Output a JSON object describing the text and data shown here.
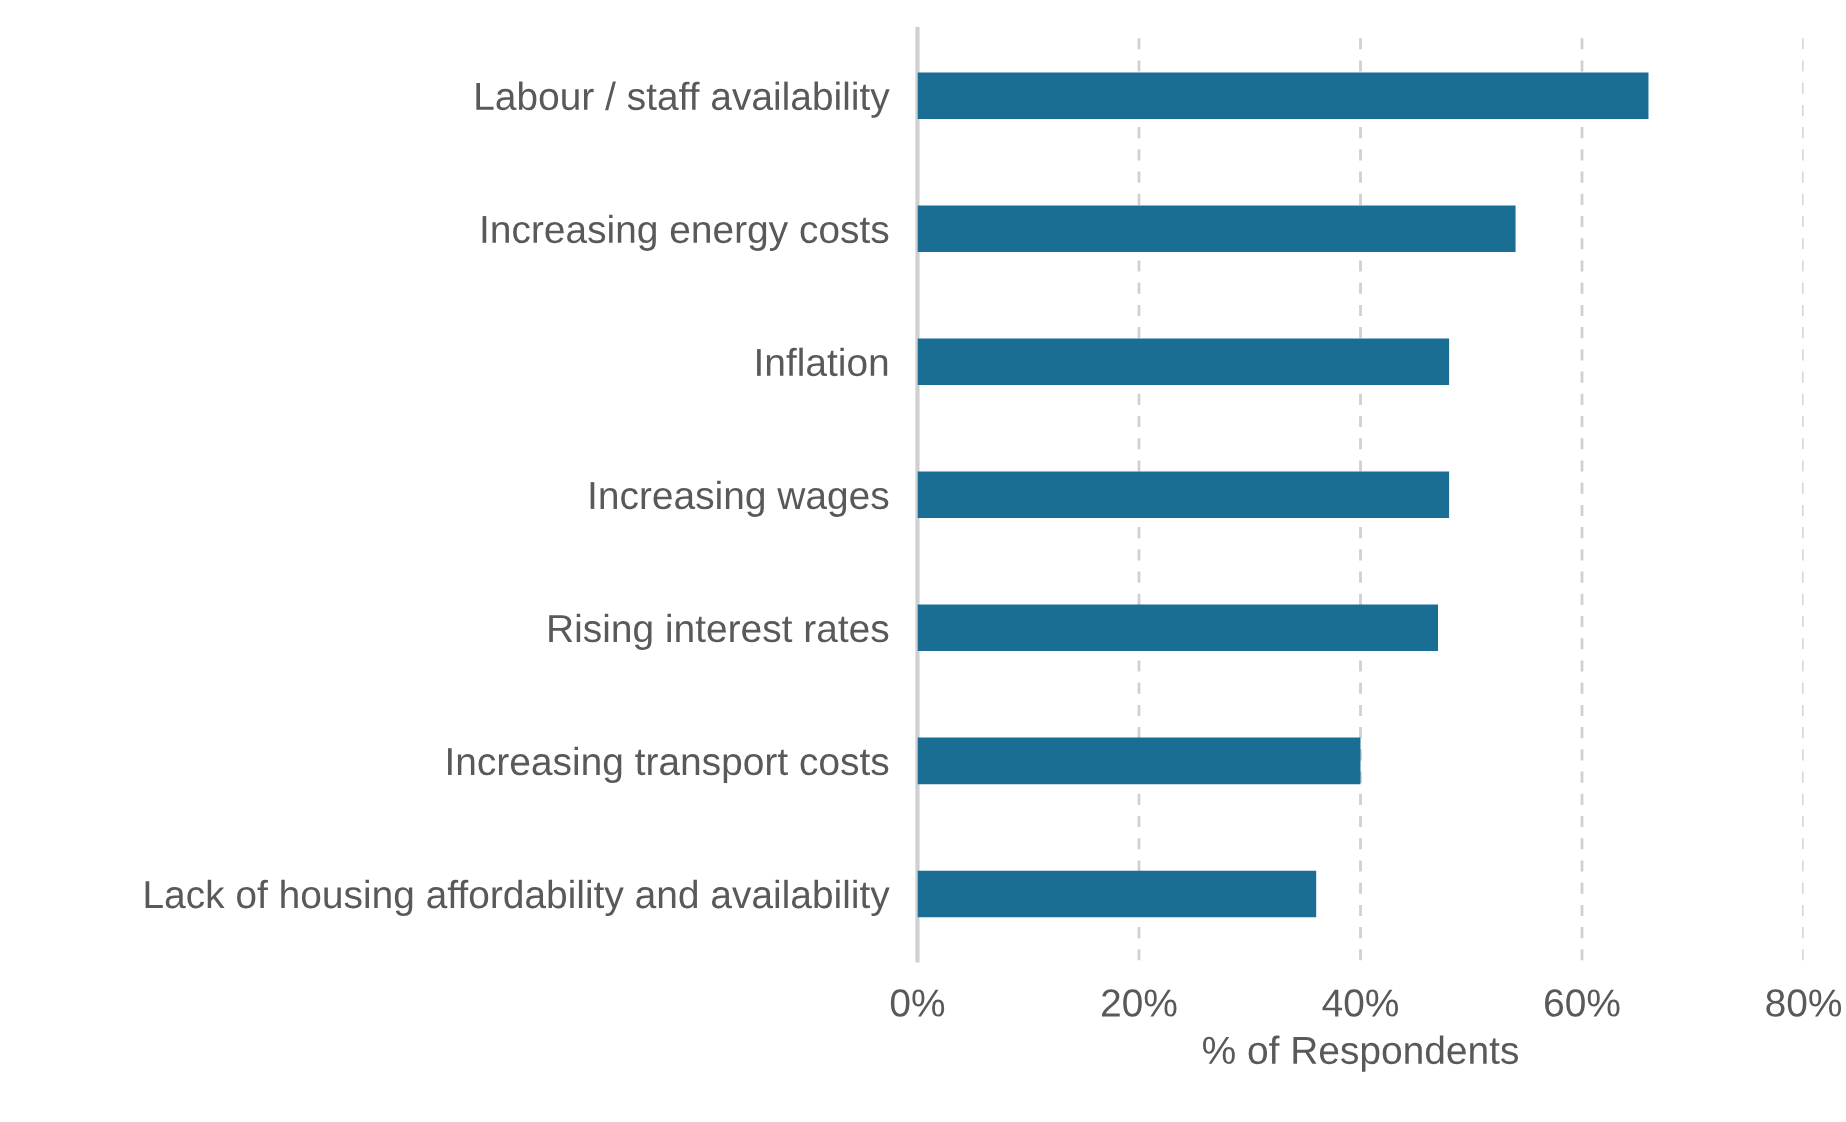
{
  "chart_data": {
    "type": "bar",
    "orientation": "horizontal",
    "xlabel": "% of Respondents",
    "categories": [
      "Labour / staff availability",
      "Increasing energy costs",
      "Inflation",
      "Increasing wages",
      "Rising interest rates",
      "Increasing transport costs",
      "Lack of housing affordability and availability"
    ],
    "values": [
      66,
      54,
      48,
      48,
      47,
      40,
      36
    ],
    "color": "#1a6e94",
    "xlim": [
      0,
      80
    ],
    "xticks": [
      {
        "value": 0,
        "label": "0%"
      },
      {
        "value": 20,
        "label": "20%"
      },
      {
        "value": 40,
        "label": "40%"
      },
      {
        "value": 60,
        "label": "60%"
      },
      {
        "value": 80,
        "label": "80%"
      }
    ],
    "grid": "x",
    "legend": false
  }
}
